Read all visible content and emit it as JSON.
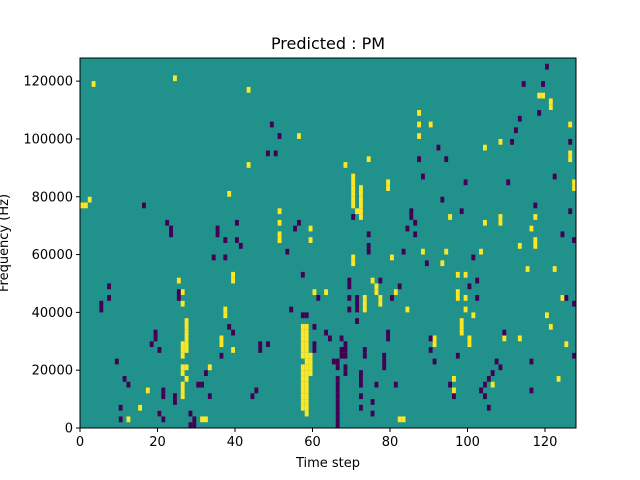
{
  "chart_data": {
    "type": "heatmap",
    "title": "Predicted : PM",
    "xlabel": "Time step",
    "ylabel": "Frequency (Hz)",
    "xlim": [
      0,
      128
    ],
    "ylim": [
      0,
      128000
    ],
    "x_ticks": [
      0,
      20,
      40,
      60,
      80,
      100,
      120
    ],
    "y_ticks": [
      0,
      20000,
      40000,
      60000,
      80000,
      100000,
      120000
    ],
    "x_tick_labels": [
      "0",
      "20",
      "40",
      "60",
      "80",
      "100",
      "120"
    ],
    "y_tick_labels": [
      "0",
      "20000",
      "40000",
      "60000",
      "80000",
      "100000",
      "120000"
    ],
    "colormap": "viridis",
    "colors": {
      "background": "#21918c",
      "high": "#fde725",
      "low": "#440154"
    },
    "grid": false,
    "cell_height_hz": 2000,
    "background_value": 0,
    "cells_yellow": [
      [
        0,
        76
      ],
      [
        1,
        76
      ],
      [
        2,
        78
      ],
      [
        3,
        118
      ],
      [
        12,
        2
      ],
      [
        15,
        6
      ],
      [
        17,
        12
      ],
      [
        20,
        4
      ],
      [
        24,
        120
      ],
      [
        25,
        50
      ],
      [
        26,
        46
      ],
      [
        26,
        42
      ],
      [
        26,
        28
      ],
      [
        26,
        26
      ],
      [
        26,
        24
      ],
      [
        26,
        20
      ],
      [
        26,
        18
      ],
      [
        26,
        14
      ],
      [
        26,
        12
      ],
      [
        26,
        10
      ],
      [
        27,
        36
      ],
      [
        27,
        34
      ],
      [
        27,
        32
      ],
      [
        27,
        30
      ],
      [
        27,
        28
      ],
      [
        27,
        26
      ],
      [
        27,
        20
      ],
      [
        27,
        16
      ],
      [
        31,
        2
      ],
      [
        32,
        2
      ],
      [
        33,
        20
      ],
      [
        36,
        30
      ],
      [
        36,
        28
      ],
      [
        37,
        40
      ],
      [
        37,
        38
      ],
      [
        38,
        80
      ],
      [
        39,
        26
      ],
      [
        39,
        52
      ],
      [
        39,
        50
      ],
      [
        43,
        90
      ],
      [
        43,
        116
      ],
      [
        51,
        74
      ],
      [
        51,
        70
      ],
      [
        51,
        66
      ],
      [
        51,
        64
      ],
      [
        56,
        100
      ],
      [
        57,
        34
      ],
      [
        57,
        32
      ],
      [
        57,
        30
      ],
      [
        57,
        28
      ],
      [
        57,
        26
      ],
      [
        57,
        24
      ],
      [
        57,
        20
      ],
      [
        57,
        18
      ],
      [
        57,
        16
      ],
      [
        57,
        14
      ],
      [
        57,
        12
      ],
      [
        57,
        10
      ],
      [
        57,
        8
      ],
      [
        57,
        6
      ],
      [
        58,
        34
      ],
      [
        58,
        32
      ],
      [
        58,
        30
      ],
      [
        58,
        28
      ],
      [
        58,
        26
      ],
      [
        58,
        24
      ],
      [
        58,
        22
      ],
      [
        58,
        20
      ],
      [
        58,
        18
      ],
      [
        58,
        16
      ],
      [
        58,
        14
      ],
      [
        58,
        12
      ],
      [
        58,
        10
      ],
      [
        58,
        8
      ],
      [
        58,
        6
      ],
      [
        58,
        4
      ],
      [
        59,
        68
      ],
      [
        59,
        64
      ],
      [
        59,
        24
      ],
      [
        59,
        22
      ],
      [
        59,
        20
      ],
      [
        59,
        18
      ],
      [
        60,
        46
      ],
      [
        63,
        46
      ],
      [
        68,
        90
      ],
      [
        70,
        86
      ],
      [
        70,
        84
      ],
      [
        70,
        82
      ],
      [
        70,
        80
      ],
      [
        70,
        78
      ],
      [
        70,
        76
      ],
      [
        70,
        58
      ],
      [
        70,
        56
      ],
      [
        71,
        74
      ],
      [
        72,
        82
      ],
      [
        72,
        80
      ],
      [
        72,
        78
      ],
      [
        72,
        76
      ],
      [
        72,
        74
      ],
      [
        72,
        72
      ],
      [
        73,
        44
      ],
      [
        73,
        42
      ],
      [
        73,
        40
      ],
      [
        74,
        92
      ],
      [
        75,
        50
      ],
      [
        76,
        48
      ],
      [
        76,
        46
      ],
      [
        77,
        44
      ],
      [
        77,
        42
      ],
      [
        79,
        84
      ],
      [
        79,
        82
      ],
      [
        80,
        58
      ],
      [
        81,
        46
      ],
      [
        82,
        2
      ],
      [
        83,
        2
      ],
      [
        84,
        40
      ],
      [
        87,
        108
      ],
      [
        87,
        104
      ],
      [
        87,
        100
      ],
      [
        88,
        60
      ],
      [
        90,
        104
      ],
      [
        91,
        30
      ],
      [
        91,
        28
      ],
      [
        93,
        56
      ],
      [
        94,
        60
      ],
      [
        95,
        72
      ],
      [
        96,
        12
      ],
      [
        96,
        16
      ],
      [
        97,
        52
      ],
      [
        97,
        46
      ],
      [
        97,
        44
      ],
      [
        98,
        36
      ],
      [
        98,
        34
      ],
      [
        98,
        32
      ],
      [
        99,
        52
      ],
      [
        99,
        44
      ],
      [
        99,
        40
      ],
      [
        100,
        30
      ],
      [
        100,
        28
      ],
      [
        101,
        38
      ],
      [
        103,
        60
      ],
      [
        104,
        96
      ],
      [
        104,
        70
      ],
      [
        106,
        14
      ],
      [
        108,
        98
      ],
      [
        108,
        70
      ],
      [
        108,
        72
      ],
      [
        109,
        30
      ],
      [
        113,
        62
      ],
      [
        113,
        30
      ],
      [
        115,
        54
      ],
      [
        116,
        68
      ],
      [
        117,
        72
      ],
      [
        117,
        64
      ],
      [
        117,
        62
      ],
      [
        118,
        114
      ],
      [
        119,
        114
      ],
      [
        121,
        110
      ],
      [
        121,
        112
      ],
      [
        120,
        38
      ],
      [
        121,
        34
      ],
      [
        122,
        54
      ],
      [
        123,
        16
      ],
      [
        124,
        44
      ],
      [
        125,
        28
      ],
      [
        126,
        94
      ],
      [
        126,
        92
      ],
      [
        126,
        104
      ],
      [
        127,
        84
      ],
      [
        127,
        82
      ],
      [
        128,
        48
      ]
    ],
    "cells_purple": [
      [
        5,
        42
      ],
      [
        5,
        40
      ],
      [
        7,
        44
      ],
      [
        7,
        48
      ],
      [
        9,
        22
      ],
      [
        10,
        2
      ],
      [
        10,
        6
      ],
      [
        11,
        16
      ],
      [
        12,
        14
      ],
      [
        16,
        76
      ],
      [
        18,
        28
      ],
      [
        19,
        30
      ],
      [
        19,
        32
      ],
      [
        20,
        4
      ],
      [
        20,
        26
      ],
      [
        21,
        2
      ],
      [
        21,
        10
      ],
      [
        21,
        12
      ],
      [
        22,
        70
      ],
      [
        23,
        66
      ],
      [
        23,
        68
      ],
      [
        24,
        8
      ],
      [
        24,
        10
      ],
      [
        25,
        44
      ],
      [
        25,
        46
      ],
      [
        28,
        4
      ],
      [
        28,
        0
      ],
      [
        29,
        2
      ],
      [
        29,
        0
      ],
      [
        30,
        14
      ],
      [
        31,
        14
      ],
      [
        32,
        18
      ],
      [
        33,
        10
      ],
      [
        34,
        58
      ],
      [
        35,
        66
      ],
      [
        35,
        68
      ],
      [
        36,
        24
      ],
      [
        37,
        58
      ],
      [
        37,
        64
      ],
      [
        38,
        34
      ],
      [
        39,
        32
      ],
      [
        40,
        70
      ],
      [
        40,
        64
      ],
      [
        41,
        62
      ],
      [
        44,
        10
      ],
      [
        45,
        12
      ],
      [
        46,
        26
      ],
      [
        46,
        28
      ],
      [
        48,
        28
      ],
      [
        48,
        94
      ],
      [
        49,
        104
      ],
      [
        50,
        94
      ],
      [
        51,
        100
      ],
      [
        53,
        60
      ],
      [
        54,
        40
      ],
      [
        55,
        68
      ],
      [
        56,
        70
      ],
      [
        57,
        52
      ],
      [
        57,
        38
      ],
      [
        58,
        38
      ],
      [
        60,
        34
      ],
      [
        60,
        28
      ],
      [
        60,
        26
      ],
      [
        61,
        44
      ],
      [
        63,
        32
      ],
      [
        64,
        30
      ],
      [
        65,
        22
      ],
      [
        66,
        22
      ],
      [
        66,
        20
      ],
      [
        66,
        16
      ],
      [
        66,
        14
      ],
      [
        66,
        12
      ],
      [
        66,
        10
      ],
      [
        66,
        8
      ],
      [
        66,
        6
      ],
      [
        66,
        4
      ],
      [
        66,
        2
      ],
      [
        66,
        0
      ],
      [
        67,
        24
      ],
      [
        67,
        26
      ],
      [
        67,
        30
      ],
      [
        68,
        28
      ],
      [
        68,
        26
      ],
      [
        68,
        24
      ],
      [
        68,
        20
      ],
      [
        68,
        18
      ],
      [
        69,
        50
      ],
      [
        69,
        48
      ],
      [
        69,
        44
      ],
      [
        69,
        40
      ],
      [
        70,
        72
      ],
      [
        71,
        36
      ],
      [
        71,
        40
      ],
      [
        71,
        42
      ],
      [
        71,
        44
      ],
      [
        72,
        6
      ],
      [
        72,
        10
      ],
      [
        72,
        14
      ],
      [
        72,
        16
      ],
      [
        72,
        18
      ],
      [
        73,
        24
      ],
      [
        73,
        26
      ],
      [
        74,
        60
      ],
      [
        74,
        62
      ],
      [
        74,
        66
      ],
      [
        75,
        4
      ],
      [
        75,
        8
      ],
      [
        76,
        14
      ],
      [
        77,
        50
      ],
      [
        78,
        24
      ],
      [
        78,
        20
      ],
      [
        78,
        22
      ],
      [
        79,
        30
      ],
      [
        79,
        32
      ],
      [
        80,
        44
      ],
      [
        81,
        14
      ],
      [
        82,
        48
      ],
      [
        83,
        60
      ],
      [
        84,
        68
      ],
      [
        85,
        72
      ],
      [
        85,
        74
      ],
      [
        86,
        66
      ],
      [
        86,
        70
      ],
      [
        87,
        92
      ],
      [
        88,
        86
      ],
      [
        89,
        56
      ],
      [
        90,
        30
      ],
      [
        90,
        26
      ],
      [
        91,
        22
      ],
      [
        92,
        96
      ],
      [
        93,
        78
      ],
      [
        94,
        92
      ],
      [
        95,
        14
      ],
      [
        96,
        10
      ],
      [
        97,
        24
      ],
      [
        98,
        74
      ],
      [
        99,
        84
      ],
      [
        100,
        48
      ],
      [
        101,
        58
      ],
      [
        102,
        44
      ],
      [
        102,
        50
      ],
      [
        103,
        12
      ],
      [
        104,
        10
      ],
      [
        104,
        14
      ],
      [
        105,
        6
      ],
      [
        105,
        16
      ],
      [
        106,
        18
      ],
      [
        107,
        22
      ],
      [
        108,
        20
      ],
      [
        109,
        32
      ],
      [
        110,
        84
      ],
      [
        111,
        98
      ],
      [
        112,
        102
      ],
      [
        113,
        106
      ],
      [
        114,
        118
      ],
      [
        116,
        22
      ],
      [
        116,
        12
      ],
      [
        117,
        76
      ],
      [
        118,
        108
      ],
      [
        119,
        118
      ],
      [
        120,
        124
      ],
      [
        122,
        86
      ],
      [
        124,
        66
      ],
      [
        125,
        44
      ],
      [
        126,
        74
      ],
      [
        126,
        98
      ],
      [
        127,
        64
      ],
      [
        127,
        42
      ],
      [
        127,
        24
      ],
      [
        128,
        30
      ],
      [
        128,
        32
      ],
      [
        128,
        76
      ]
    ]
  }
}
